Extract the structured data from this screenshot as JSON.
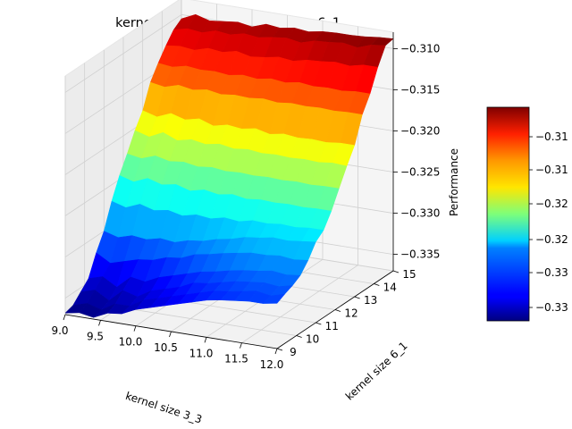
{
  "chart_data": {
    "type": "surface3d",
    "title": "kernel size 3_3 and kernel size 6_1",
    "xlabel": "kernel size 3_3",
    "ylabel": "kernel size 6_1",
    "zlabel": "Performance",
    "x_ticks": [
      "9.0",
      "9.5",
      "10.0",
      "10.5",
      "11.0",
      "11.5",
      "12.0"
    ],
    "y_ticks": [
      "9",
      "10",
      "11",
      "12",
      "13",
      "14",
      "15"
    ],
    "z_ticks": [
      "0.310",
      "0.315",
      "0.320",
      "0.325",
      "0.330",
      "0.335"
    ],
    "colorbar_ticks": [
      "-0.31",
      "-0.31",
      "-0.32",
      "-0.32",
      "-0.33",
      "-0.33"
    ],
    "colormap": "jet",
    "xlim": [
      9,
      12
    ],
    "ylim": [
      9,
      15
    ],
    "zlim": [
      -0.337,
      -0.308
    ],
    "grid": true,
    "rows": [
      {
        "y": 15.0,
        "z": [
          -0.3105,
          -0.3097,
          -0.3102,
          -0.31,
          -0.3098,
          -0.3101,
          -0.3095,
          -0.3097,
          -0.3094,
          -0.3096,
          -0.3093,
          -0.3092,
          -0.3092,
          -0.3091,
          -0.3089,
          -0.3088
        ]
      },
      {
        "y": 14.6,
        "z": [
          -0.3112,
          -0.3108,
          -0.311,
          -0.3105,
          -0.3107,
          -0.3103,
          -0.3105,
          -0.3102,
          -0.31,
          -0.3103,
          -0.3098,
          -0.3097,
          -0.3095,
          -0.3098,
          -0.3092,
          -0.309
        ]
      },
      {
        "y": 14.2,
        "z": [
          -0.3125,
          -0.3123,
          -0.3125,
          -0.312,
          -0.3122,
          -0.3118,
          -0.3122,
          -0.312,
          -0.3117,
          -0.3119,
          -0.3115,
          -0.3114,
          -0.3112,
          -0.3114,
          -0.311,
          -0.311
        ]
      },
      {
        "y": 13.8,
        "z": [
          -0.314,
          -0.3142,
          -0.3138,
          -0.314,
          -0.3139,
          -0.3141,
          -0.3138,
          -0.314,
          -0.3137,
          -0.3139,
          -0.3136,
          -0.3138,
          -0.3137,
          -0.3138,
          -0.3136,
          -0.3136
        ]
      },
      {
        "y": 13.4,
        "z": [
          -0.3157,
          -0.316,
          -0.3155,
          -0.3158,
          -0.3155,
          -0.3158,
          -0.3156,
          -0.3157,
          -0.3155,
          -0.3157,
          -0.3155,
          -0.3156,
          -0.3155,
          -0.3156,
          -0.3155,
          -0.3155
        ]
      },
      {
        "y": 13.0,
        "z": [
          -0.3185,
          -0.319,
          -0.3183,
          -0.3188,
          -0.3184,
          -0.319,
          -0.3186,
          -0.3188,
          -0.3185,
          -0.3189,
          -0.3186,
          -0.3188,
          -0.3187,
          -0.3188,
          -0.3186,
          -0.3186
        ]
      },
      {
        "y": 12.6,
        "z": [
          -0.3203,
          -0.3208,
          -0.32,
          -0.3207,
          -0.3203,
          -0.3206,
          -0.3203,
          -0.3206,
          -0.3204,
          -0.3206,
          -0.3205,
          -0.3206,
          -0.3205,
          -0.3206,
          -0.3204,
          -0.3205
        ]
      },
      {
        "y": 12.2,
        "z": [
          -0.3225,
          -0.3228,
          -0.3222,
          -0.3226,
          -0.3224,
          -0.3227,
          -0.3225,
          -0.3227,
          -0.3226,
          -0.3227,
          -0.3226,
          -0.3227,
          -0.3226,
          -0.3227,
          -0.3226,
          -0.3226
        ]
      },
      {
        "y": 11.8,
        "z": [
          -0.3245,
          -0.325,
          -0.3243,
          -0.3248,
          -0.3245,
          -0.325,
          -0.3246,
          -0.3249,
          -0.3246,
          -0.3249,
          -0.3247,
          -0.3248,
          -0.3247,
          -0.3248,
          -0.3247,
          -0.3247
        ]
      },
      {
        "y": 11.4,
        "z": [
          -0.327,
          -0.3275,
          -0.3268,
          -0.3273,
          -0.327,
          -0.3274,
          -0.327,
          -0.3272,
          -0.3268,
          -0.327,
          -0.3266,
          -0.3267,
          -0.3265,
          -0.3266,
          -0.3264,
          -0.3264
        ]
      },
      {
        "y": 11.0,
        "z": [
          -0.33,
          -0.3305,
          -0.33,
          -0.3302,
          -0.3298,
          -0.33,
          -0.3295,
          -0.3293,
          -0.3288,
          -0.3285,
          -0.328,
          -0.3278,
          -0.3275,
          -0.3276,
          -0.3274,
          -0.3272
        ]
      },
      {
        "y": 10.6,
        "z": [
          -0.332,
          -0.333,
          -0.3325,
          -0.332,
          -0.3318,
          -0.3312,
          -0.331,
          -0.3303,
          -0.33,
          -0.3296,
          -0.3293,
          -0.329,
          -0.329,
          -0.3288,
          -0.329,
          -0.3288
        ]
      },
      {
        "y": 10.2,
        "z": [
          -0.3345,
          -0.334,
          -0.335,
          -0.3335,
          -0.3338,
          -0.333,
          -0.3325,
          -0.332,
          -0.3315,
          -0.3312,
          -0.3308,
          -0.3305,
          -0.3303,
          -0.33,
          -0.3302,
          -0.33
        ]
      },
      {
        "y": 9.8,
        "z": [
          -0.3355,
          -0.335,
          -0.336,
          -0.3345,
          -0.335,
          -0.334,
          -0.3335,
          -0.333,
          -0.3322,
          -0.332,
          -0.3316,
          -0.3312,
          -0.331,
          -0.3308,
          -0.331,
          -0.3306
        ]
      },
      {
        "y": 9.4,
        "z": [
          -0.3365,
          -0.336,
          -0.3365,
          -0.3355,
          -0.3355,
          -0.3345,
          -0.334,
          -0.3335,
          -0.333,
          -0.3325,
          -0.332,
          -0.3318,
          -0.3315,
          -0.3312,
          -0.3315,
          -0.331
        ]
      },
      {
        "y": 9.0,
        "z": [
          -0.3368,
          -0.3365,
          -0.3368,
          -0.336,
          -0.3358,
          -0.335,
          -0.3345,
          -0.334,
          -0.3335,
          -0.333,
          -0.3325,
          -0.3322,
          -0.332,
          -0.3318,
          -0.3318,
          -0.3315
        ]
      }
    ]
  }
}
